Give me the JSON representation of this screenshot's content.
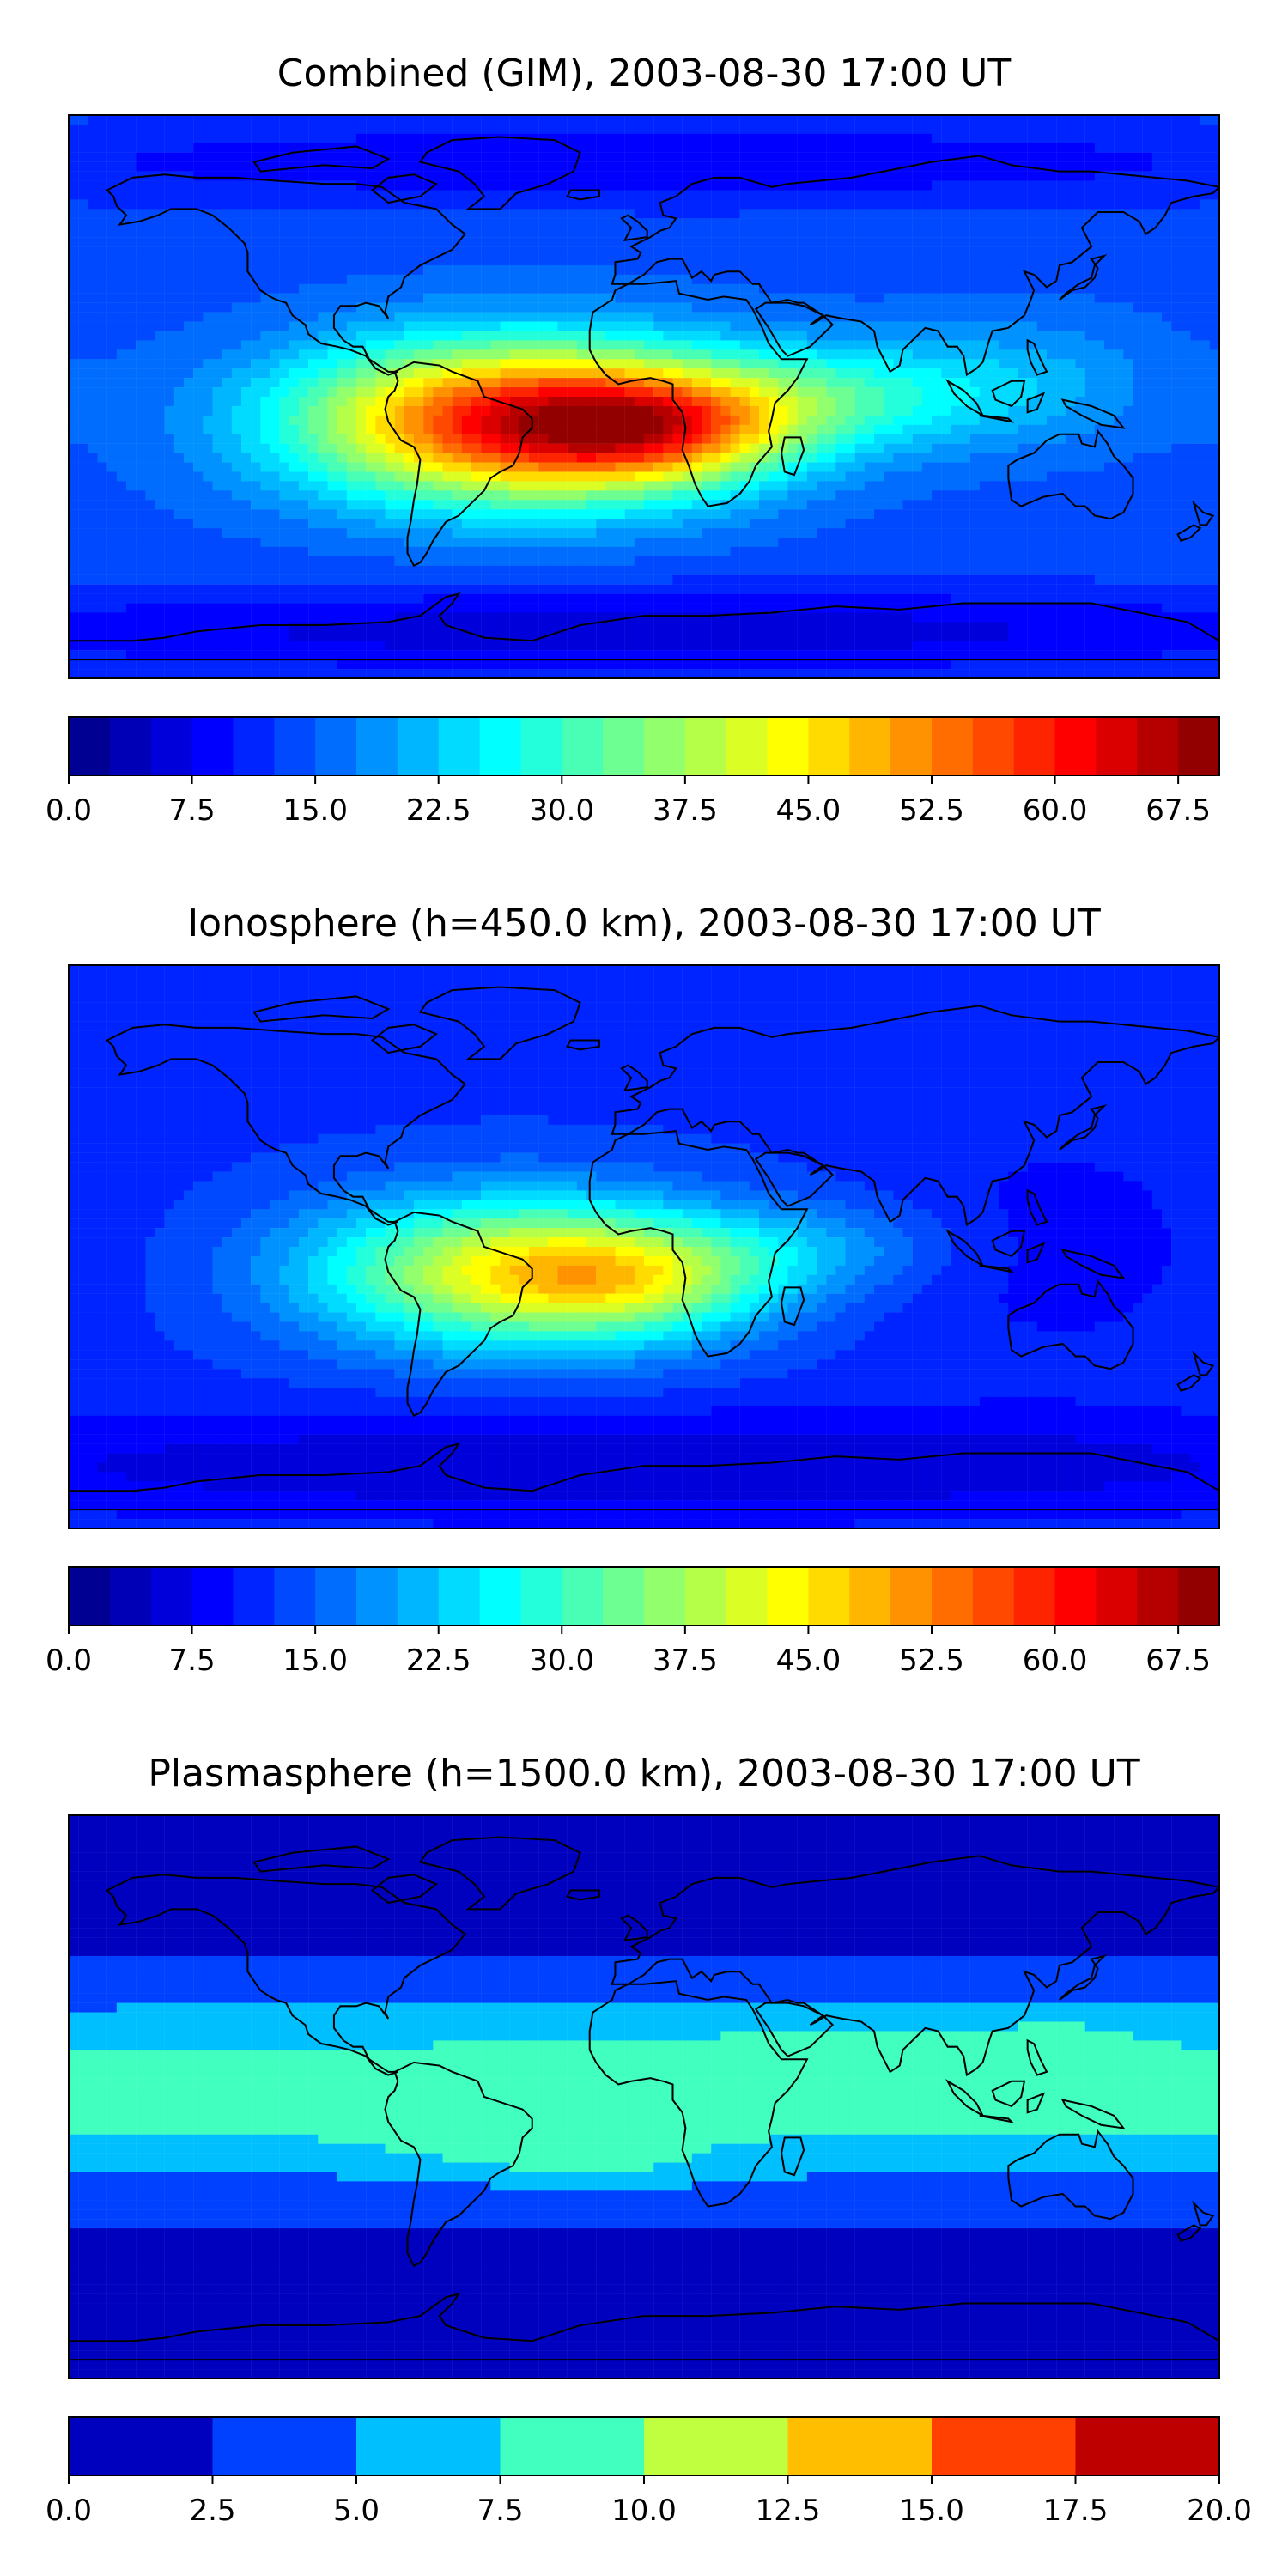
{
  "figure_title": "Combined (GIM) / Ionosphere / Plasmasphere maps",
  "chart_data": [
    {
      "type": "heatmap",
      "title": "Combined (GIM), 2003-08-30 17:00 UT",
      "colormap": "jet",
      "colorbar": {
        "range": [
          0.0,
          70.0
        ],
        "levels": 28,
        "ticks": [
          "0.0",
          "7.5",
          "15.0",
          "22.5",
          "30.0",
          "37.5",
          "45.0",
          "52.5",
          "60.0",
          "67.5"
        ],
        "tick_values": [
          0.0,
          7.5,
          15.0,
          22.5,
          30.0,
          37.5,
          45.0,
          52.5,
          60.0,
          67.5
        ]
      },
      "field": {
        "background": 14,
        "blobs": [
          {
            "lon": -40,
            "lat": -8,
            "amp": 46,
            "slon": 48,
            "slat": 18
          },
          {
            "lon": 5,
            "lat": -10,
            "amp": 22,
            "slon": 30,
            "slat": 12
          },
          {
            "lon": 60,
            "lat": 0,
            "amp": 12,
            "slon": 35,
            "slat": 12
          },
          {
            "lon": 120,
            "lat": 5,
            "amp": 6,
            "slon": 30,
            "slat": 15
          },
          {
            "lon": 0,
            "lat": 75,
            "amp": -6,
            "slon": 180,
            "slat": 10
          },
          {
            "lon": 0,
            "lat": -75,
            "amp": -8,
            "slon": 180,
            "slat": 10
          }
        ]
      }
    },
    {
      "type": "heatmap",
      "title": "Ionosphere  (h=450.0 km), 2003-08-30 17:00 UT",
      "colormap": "jet",
      "colorbar": {
        "range": [
          0.0,
          70.0
        ],
        "levels": 28,
        "ticks": [
          "0.0",
          "7.5",
          "15.0",
          "22.5",
          "30.0",
          "37.5",
          "45.0",
          "52.5",
          "60.0",
          "67.5"
        ],
        "tick_values": [
          0.0,
          7.5,
          15.0,
          22.5,
          30.0,
          37.5,
          45.0,
          52.5,
          60.0,
          67.5
        ]
      },
      "field": {
        "background": 12,
        "blobs": [
          {
            "lon": -40,
            "lat": -8,
            "amp": 30,
            "slon": 45,
            "slat": 17
          },
          {
            "lon": 0,
            "lat": -10,
            "amp": 14,
            "slon": 30,
            "slat": 12
          },
          {
            "lon": 55,
            "lat": 0,
            "amp": 6,
            "slon": 30,
            "slat": 10
          },
          {
            "lon": 0,
            "lat": -70,
            "amp": -7,
            "slon": 180,
            "slat": 12
          },
          {
            "lon": 130,
            "lat": 0,
            "amp": -3,
            "slon": 40,
            "slat": 30
          }
        ]
      }
    },
    {
      "type": "heatmap",
      "title": "Plasmasphere (h=1500.0 km), 2003-08-30 17:00 UT",
      "colormap": "jet",
      "colorbar": {
        "range": [
          0.0,
          20.0
        ],
        "levels": 8,
        "ticks": [
          "0.0",
          "2.5",
          "5.0",
          "7.5",
          "10.0",
          "12.5",
          "15.0",
          "17.5",
          "20.0"
        ],
        "tick_values": [
          0.0,
          2.5,
          5.0,
          7.5,
          10.0,
          12.5,
          15.0,
          17.5,
          20.0
        ]
      },
      "field": {
        "background": 1.5,
        "blobs": [
          {
            "lon": 0,
            "lat": 2,
            "amp": 7.5,
            "slon": 600,
            "slat": 22
          },
          {
            "lon": -40,
            "lat": -15,
            "amp": 2,
            "slon": 30,
            "slat": 7
          },
          {
            "lon": -10,
            "lat": -22,
            "amp": 1.8,
            "slon": 25,
            "slat": 6
          },
          {
            "lon": 60,
            "lat": 18,
            "amp": 1.5,
            "slon": 25,
            "slat": 6
          },
          {
            "lon": 130,
            "lat": 20,
            "amp": 1.5,
            "slon": 20,
            "slat": 6
          }
        ]
      }
    }
  ]
}
